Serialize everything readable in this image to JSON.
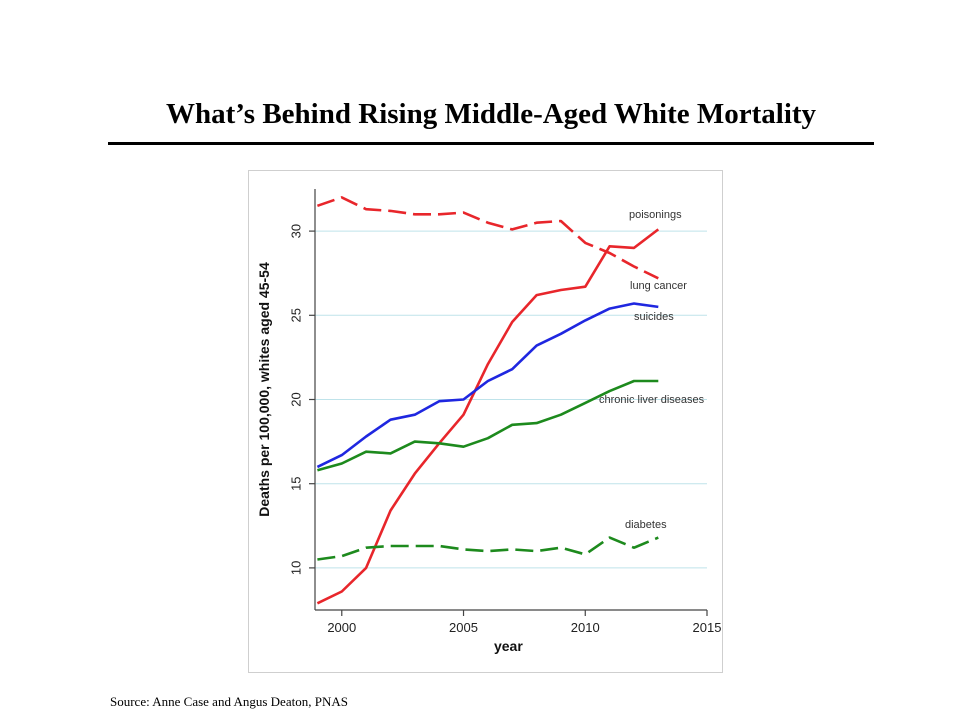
{
  "slide": {
    "title": "What’s Behind Rising Middle-Aged White Mortality",
    "source": "Source: Anne Case and Angus Deaton, PNAS"
  },
  "chart_data": {
    "type": "line",
    "title": "",
    "xlabel": "year",
    "ylabel": "Deaths per 100,000, whites aged 45-54",
    "xlim": [
      1998.9,
      2015
    ],
    "ylim": [
      7.5,
      32.5
    ],
    "x_ticks": [
      "2000",
      "2005",
      "2010",
      "2015"
    ],
    "y_ticks": [
      "10",
      "15",
      "20",
      "25",
      "30"
    ],
    "grid": true,
    "x": [
      1999,
      2000,
      2001,
      2002,
      2003,
      2004,
      2005,
      2006,
      2007,
      2008,
      2009,
      2010,
      2011,
      2012,
      2013
    ],
    "series": [
      {
        "name": "poisonings",
        "label": "poisonings",
        "color": "#e8262b",
        "dashed": false,
        "values": [
          7.9,
          8.6,
          10.0,
          13.4,
          15.6,
          17.4,
          19.1,
          22.1,
          24.6,
          26.2,
          26.5,
          26.7,
          29.1,
          29.0,
          30.1
        ]
      },
      {
        "name": "lung cancer",
        "label": "lung cancer",
        "color": "#e8262b",
        "dashed": true,
        "values": [
          31.5,
          32.0,
          31.3,
          31.2,
          31.0,
          31.0,
          31.1,
          30.5,
          30.1,
          30.5,
          30.6,
          29.3,
          28.7,
          27.9,
          27.2
        ]
      },
      {
        "name": "suicides",
        "label": "suicides",
        "color": "#1f27e0",
        "dashed": false,
        "values": [
          16.0,
          16.7,
          17.8,
          18.8,
          19.1,
          19.9,
          20.0,
          21.1,
          21.8,
          23.2,
          23.9,
          24.7,
          25.4,
          25.7,
          25.5
        ]
      },
      {
        "name": "chronic liver diseases",
        "label": "chronic liver diseases",
        "color": "#1d8a1d",
        "dashed": false,
        "values": [
          15.8,
          16.2,
          16.9,
          16.8,
          17.5,
          17.4,
          17.2,
          17.7,
          18.5,
          18.6,
          19.1,
          19.8,
          20.5,
          21.1,
          21.1
        ]
      },
      {
        "name": "diabetes",
        "label": "diabetes",
        "color": "#1d8a1d",
        "dashed": true,
        "values": [
          10.5,
          10.7,
          11.2,
          11.3,
          11.3,
          11.3,
          11.1,
          11.0,
          11.1,
          11.0,
          11.2,
          10.8,
          11.8,
          11.2,
          11.8
        ]
      }
    ]
  }
}
